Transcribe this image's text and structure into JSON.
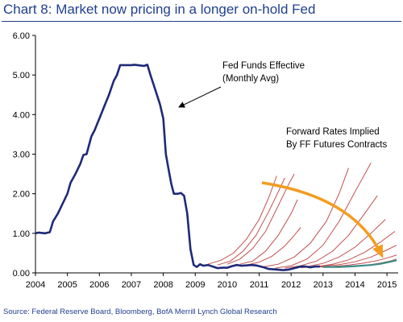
{
  "header": {
    "title": "Chart 8: Market now pricing in a longer on-hold Fed"
  },
  "footer": {
    "source": "Source: Federal Reserve Board, Bloomberg, BofA Merrill Lynch Global Research"
  },
  "chart_data": {
    "type": "line",
    "title": "Chart 8: Market now pricing in a longer on-hold Fed",
    "xlabel": "",
    "ylabel": "",
    "xlim": [
      2004,
      2015.35
    ],
    "ylim": [
      0,
      6
    ],
    "x_ticks": [
      "2004",
      "2005",
      "2006",
      "2007",
      "2008",
      "2009",
      "2010",
      "2011",
      "2012",
      "2013",
      "2014",
      "2015"
    ],
    "y_ticks": [
      "0.00",
      "1.00",
      "2.00",
      "3.00",
      "4.00",
      "5.00",
      "6.00"
    ],
    "grid": false,
    "colors": {
      "fed_funds": "#1f2a78",
      "forward": "#c0504d",
      "forward_latest": "#3a8a86",
      "arrow": "#f39c1f",
      "title": "#1f3f8f"
    },
    "annotations": [
      {
        "id": "fed-funds-label",
        "lines": [
          "Fed Funds Effective",
          "(Monthly Avg)"
        ]
      },
      {
        "id": "forward-label",
        "lines": [
          "Forward Rates Implied",
          "By FF Futures Contracts"
        ]
      }
    ],
    "series": [
      {
        "id": "fed-funds-effective",
        "points": [
          [
            2004.0,
            1.0
          ],
          [
            2004.1,
            1.02
          ],
          [
            2004.3,
            1.0
          ],
          [
            2004.45,
            1.03
          ],
          [
            2004.55,
            1.3
          ],
          [
            2004.7,
            1.5
          ],
          [
            2004.85,
            1.75
          ],
          [
            2005.0,
            2.0
          ],
          [
            2005.1,
            2.28
          ],
          [
            2005.25,
            2.5
          ],
          [
            2005.4,
            2.75
          ],
          [
            2005.5,
            2.98
          ],
          [
            2005.6,
            3.0
          ],
          [
            2005.75,
            3.45
          ],
          [
            2005.85,
            3.6
          ],
          [
            2006.0,
            3.9
          ],
          [
            2006.15,
            4.2
          ],
          [
            2006.3,
            4.5
          ],
          [
            2006.45,
            4.85
          ],
          [
            2006.55,
            5.0
          ],
          [
            2006.65,
            5.25
          ],
          [
            2006.8,
            5.25
          ],
          [
            2007.0,
            5.25
          ],
          [
            2007.1,
            5.26
          ],
          [
            2007.2,
            5.25
          ],
          [
            2007.4,
            5.23
          ],
          [
            2007.5,
            5.26
          ],
          [
            2007.6,
            5.0
          ],
          [
            2007.7,
            4.75
          ],
          [
            2007.8,
            4.5
          ],
          [
            2007.9,
            4.25
          ],
          [
            2008.0,
            3.9
          ],
          [
            2008.08,
            3.0
          ],
          [
            2008.17,
            2.6
          ],
          [
            2008.25,
            2.25
          ],
          [
            2008.33,
            2.0
          ],
          [
            2008.45,
            2.0
          ],
          [
            2008.55,
            2.02
          ],
          [
            2008.65,
            1.95
          ],
          [
            2008.75,
            1.5
          ],
          [
            2008.85,
            0.6
          ],
          [
            2008.95,
            0.2
          ],
          [
            2009.05,
            0.15
          ],
          [
            2009.15,
            0.22
          ],
          [
            2009.25,
            0.18
          ],
          [
            2009.4,
            0.2
          ],
          [
            2009.55,
            0.16
          ],
          [
            2009.7,
            0.12
          ],
          [
            2009.85,
            0.13
          ],
          [
            2010.0,
            0.13
          ],
          [
            2010.15,
            0.17
          ],
          [
            2010.3,
            0.2
          ],
          [
            2010.45,
            0.18
          ],
          [
            2010.6,
            0.19
          ],
          [
            2010.75,
            0.2
          ],
          [
            2010.9,
            0.19
          ],
          [
            2011.0,
            0.17
          ],
          [
            2011.15,
            0.14
          ],
          [
            2011.3,
            0.1
          ],
          [
            2011.45,
            0.09
          ],
          [
            2011.6,
            0.08
          ],
          [
            2011.75,
            0.07
          ],
          [
            2011.9,
            0.08
          ],
          [
            2012.0,
            0.1
          ],
          [
            2012.15,
            0.13
          ],
          [
            2012.3,
            0.16
          ],
          [
            2012.45,
            0.16
          ],
          [
            2012.6,
            0.14
          ],
          [
            2012.75,
            0.16
          ],
          [
            2012.9,
            0.16
          ]
        ]
      },
      {
        "id": "forward-1",
        "points": [
          [
            2009.4,
            0.22
          ],
          [
            2009.8,
            0.32
          ],
          [
            2010.2,
            0.5
          ],
          [
            2010.6,
            0.85
          ],
          [
            2011.0,
            1.35
          ],
          [
            2011.3,
            1.9
          ],
          [
            2011.55,
            2.45
          ]
        ]
      },
      {
        "id": "forward-2",
        "points": [
          [
            2009.7,
            0.2
          ],
          [
            2010.1,
            0.3
          ],
          [
            2010.5,
            0.55
          ],
          [
            2010.9,
            0.95
          ],
          [
            2011.3,
            1.55
          ],
          [
            2011.6,
            2.05
          ],
          [
            2011.8,
            2.4
          ]
        ]
      },
      {
        "id": "forward-3",
        "points": [
          [
            2010.0,
            0.22
          ],
          [
            2010.4,
            0.35
          ],
          [
            2010.8,
            0.62
          ],
          [
            2011.2,
            1.05
          ],
          [
            2011.6,
            1.7
          ],
          [
            2011.9,
            2.2
          ],
          [
            2012.1,
            2.5
          ]
        ]
      },
      {
        "id": "forward-4",
        "points": [
          [
            2010.4,
            0.22
          ],
          [
            2010.8,
            0.3
          ],
          [
            2011.2,
            0.55
          ],
          [
            2011.6,
            0.95
          ],
          [
            2012.0,
            1.5
          ],
          [
            2012.2,
            1.85
          ]
        ]
      },
      {
        "id": "forward-5",
        "points": [
          [
            2010.6,
            0.2
          ],
          [
            2011.0,
            0.27
          ],
          [
            2011.4,
            0.42
          ],
          [
            2011.8,
            0.68
          ],
          [
            2012.1,
            0.95
          ],
          [
            2012.3,
            1.15
          ]
        ]
      },
      {
        "id": "forward-6",
        "points": [
          [
            2011.1,
            0.15
          ],
          [
            2011.6,
            0.22
          ],
          [
            2012.1,
            0.4
          ],
          [
            2012.6,
            0.75
          ],
          [
            2013.1,
            1.3
          ],
          [
            2013.5,
            2.0
          ],
          [
            2013.8,
            2.65
          ]
        ]
      },
      {
        "id": "forward-7",
        "points": [
          [
            2011.5,
            0.12
          ],
          [
            2012.0,
            0.18
          ],
          [
            2012.5,
            0.35
          ],
          [
            2013.0,
            0.7
          ],
          [
            2013.5,
            1.3
          ],
          [
            2014.0,
            2.05
          ],
          [
            2014.5,
            2.78
          ]
        ]
      },
      {
        "id": "forward-8",
        "points": [
          [
            2011.8,
            0.12
          ],
          [
            2012.3,
            0.18
          ],
          [
            2012.8,
            0.3
          ],
          [
            2013.3,
            0.55
          ],
          [
            2013.8,
            0.95
          ],
          [
            2014.3,
            1.5
          ],
          [
            2014.7,
            1.95
          ]
        ]
      },
      {
        "id": "forward-9",
        "points": [
          [
            2012.0,
            0.12
          ],
          [
            2012.5,
            0.16
          ],
          [
            2013.0,
            0.24
          ],
          [
            2013.5,
            0.4
          ],
          [
            2014.0,
            0.65
          ],
          [
            2014.5,
            1.0
          ],
          [
            2014.95,
            1.35
          ]
        ]
      },
      {
        "id": "forward-10",
        "points": [
          [
            2012.3,
            0.13
          ],
          [
            2012.8,
            0.16
          ],
          [
            2013.3,
            0.22
          ],
          [
            2013.8,
            0.33
          ],
          [
            2014.3,
            0.52
          ],
          [
            2014.8,
            0.78
          ],
          [
            2015.25,
            1.05
          ]
        ]
      },
      {
        "id": "forward-11",
        "points": [
          [
            2012.5,
            0.15
          ],
          [
            2013.0,
            0.17
          ],
          [
            2013.5,
            0.21
          ],
          [
            2014.0,
            0.28
          ],
          [
            2014.5,
            0.4
          ],
          [
            2015.0,
            0.58
          ],
          [
            2015.3,
            0.7
          ]
        ]
      },
      {
        "id": "forward-12",
        "points": [
          [
            2012.7,
            0.15
          ],
          [
            2013.2,
            0.16
          ],
          [
            2013.7,
            0.19
          ],
          [
            2014.2,
            0.24
          ],
          [
            2014.7,
            0.31
          ],
          [
            2015.1,
            0.4
          ],
          [
            2015.3,
            0.45
          ]
        ]
      },
      {
        "id": "forward-13",
        "points": [
          [
            2012.9,
            0.15
          ],
          [
            2013.4,
            0.15
          ],
          [
            2013.9,
            0.17
          ],
          [
            2014.4,
            0.2
          ],
          [
            2014.8,
            0.25
          ],
          [
            2015.1,
            0.3
          ],
          [
            2015.3,
            0.35
          ]
        ]
      },
      {
        "id": "forward-latest",
        "points": [
          [
            2013.0,
            0.15
          ],
          [
            2013.5,
            0.15
          ],
          [
            2014.0,
            0.17
          ],
          [
            2014.5,
            0.2
          ],
          [
            2014.8,
            0.23
          ],
          [
            2015.1,
            0.28
          ],
          [
            2015.3,
            0.32
          ]
        ]
      }
    ]
  }
}
